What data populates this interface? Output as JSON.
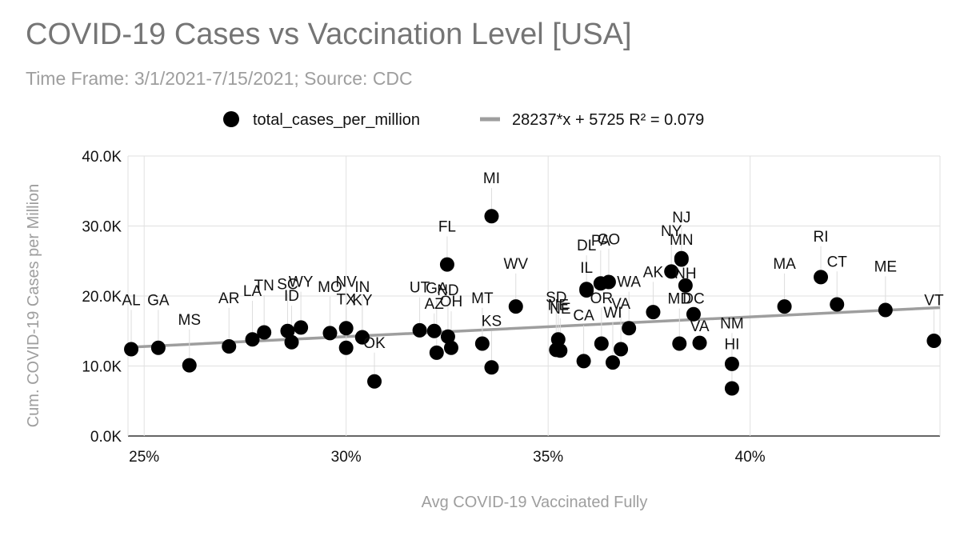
{
  "chart_data": {
    "type": "scatter",
    "title": "COVID-19 Cases vs Vaccination Level [USA]",
    "subtitle": "Time Frame: 3/1/2021-7/15/2021; Source: CDC",
    "xlabel": "Avg COVID-19 Vaccinated Fully",
    "ylabel": "Cum. COVID-19 Cases per Million",
    "xlim": [
      0.246,
      0.447
    ],
    "ylim": [
      0,
      40000
    ],
    "x_ticks": [
      {
        "value": 0.25,
        "label": "25%"
      },
      {
        "value": 0.3,
        "label": "30%"
      },
      {
        "value": 0.35,
        "label": "35%"
      },
      {
        "value": 0.4,
        "label": "40%"
      }
    ],
    "y_ticks": [
      {
        "value": 0,
        "label": "0.0K"
      },
      {
        "value": 10000,
        "label": "10.0K"
      },
      {
        "value": 20000,
        "label": "20.0K"
      },
      {
        "value": 30000,
        "label": "30.0K"
      },
      {
        "value": 40000,
        "label": "40.0K"
      }
    ],
    "grid": true,
    "legend": {
      "position": "top",
      "series_label": "total_cases_per_million",
      "trendline_label": "28237*x + 5725 R² = 0.079"
    },
    "trendline": {
      "slope": 28237,
      "intercept": 5725,
      "r2": 0.079
    },
    "colors": {
      "points": "#000000",
      "trendline": "#9e9e9e",
      "grid": "#e0e0e0",
      "axis": "#333333"
    },
    "series": [
      {
        "name": "total_cases_per_million",
        "points": [
          {
            "label": "AL",
            "x": 0.2468,
            "y": 12400,
            "ly": 18700
          },
          {
            "label": "GA",
            "x": 0.2535,
            "y": 12600,
            "ly": 18700
          },
          {
            "label": "MS",
            "x": 0.2612,
            "y": 10100,
            "ly": 15900
          },
          {
            "label": "AR",
            "x": 0.271,
            "y": 12800,
            "ly": 19000
          },
          {
            "label": "LA",
            "x": 0.2768,
            "y": 13800,
            "ly": 20000
          },
          {
            "label": "TN",
            "x": 0.2797,
            "y": 14800,
            "ly": 20800
          },
          {
            "label": "SC",
            "x": 0.2855,
            "y": 15000,
            "ly": 21000
          },
          {
            "label": "ID",
            "x": 0.2865,
            "y": 13400,
            "ly": 19300
          },
          {
            "label": "WY",
            "x": 0.2888,
            "y": 15500,
            "ly": 21300
          },
          {
            "label": "MO",
            "x": 0.296,
            "y": 14700,
            "ly": 20600
          },
          {
            "label": "TX",
            "x": 0.3,
            "y": 12600,
            "ly": 18800
          },
          {
            "label": "NV",
            "x": 0.3,
            "y": 15400,
            "ly": 21300
          },
          {
            "label": "IN",
            "x": 0.304,
            "y": 14100,
            "ly": 20600
          },
          {
            "label": "OK",
            "x": 0.307,
            "y": 7800,
            "ly": 12600
          },
          {
            "label": "KY",
            "x": 0.304,
            "y": 14100,
            "ly": 18700
          },
          {
            "label": "UT",
            "x": 0.3182,
            "y": 15100,
            "ly": 20500
          },
          {
            "label": "AZ",
            "x": 0.3218,
            "y": 15000,
            "ly": 18200
          },
          {
            "label": "GA",
            "x": 0.3224,
            "y": 11900,
            "ly": 20400
          },
          {
            "label": "ND",
            "x": 0.3252,
            "y": 14200,
            "ly": 20100
          },
          {
            "label": "OH",
            "x": 0.326,
            "y": 12600,
            "ly": 18500
          },
          {
            "label": "FL",
            "x": 0.325,
            "y": 24500,
            "ly": 29200
          },
          {
            "label": "MI",
            "x": 0.336,
            "y": 31400,
            "ly": 36100
          },
          {
            "label": "MT",
            "x": 0.3337,
            "y": 13200,
            "ly": 19000
          },
          {
            "label": "KS",
            "x": 0.336,
            "y": 9800,
            "ly": 15700
          },
          {
            "label": "WV",
            "x": 0.342,
            "y": 18500,
            "ly": 23900
          },
          {
            "label": "SD",
            "x": 0.352,
            "y": 12300,
            "ly": 19100
          },
          {
            "label": "NE",
            "x": 0.3525,
            "y": 13800,
            "ly": 18000
          },
          {
            "label": "NE",
            "x": 0.353,
            "y": 12200,
            "ly": 17500
          },
          {
            "label": "CA",
            "x": 0.3588,
            "y": 10700,
            "ly": 16500
          },
          {
            "label": "IL",
            "x": 0.3595,
            "y": 20800,
            "ly": 23300
          },
          {
            "label": "DL",
            "x": 0.3595,
            "y": 21000,
            "ly": 26500
          },
          {
            "label": "PA",
            "x": 0.363,
            "y": 21800,
            "ly": 27200
          },
          {
            "label": "CO",
            "x": 0.365,
            "y": 22000,
            "ly": 27400
          },
          {
            "label": "OR",
            "x": 0.3632,
            "y": 13200,
            "ly": 19000
          },
          {
            "label": "WI",
            "x": 0.366,
            "y": 10500,
            "ly": 16900
          },
          {
            "label": "VA",
            "x": 0.368,
            "y": 12400,
            "ly": 18200
          },
          {
            "label": "WA",
            "x": 0.37,
            "y": 15400,
            "ly": 21300
          },
          {
            "label": "AK",
            "x": 0.376,
            "y": 17700,
            "ly": 22700
          },
          {
            "label": "MD",
            "x": 0.3825,
            "y": 13200,
            "ly": 18900
          },
          {
            "label": "NY",
            "x": 0.3805,
            "y": 23500,
            "ly": 28600
          },
          {
            "label": "MN",
            "x": 0.383,
            "y": 25200,
            "ly": 27300
          },
          {
            "label": "NJ",
            "x": 0.383,
            "y": 25400,
            "ly": 30500
          },
          {
            "label": "NH",
            "x": 0.384,
            "y": 21500,
            "ly": 22500
          },
          {
            "label": "DC",
            "x": 0.386,
            "y": 17400,
            "ly": 18900
          },
          {
            "label": "VA",
            "x": 0.3875,
            "y": 13300,
            "ly": 15000
          },
          {
            "label": "NM",
            "x": 0.3955,
            "y": 10300,
            "ly": 15400
          },
          {
            "label": "HI",
            "x": 0.3955,
            "y": 6800,
            "ly": 12400
          },
          {
            "label": "MA",
            "x": 0.4085,
            "y": 18500,
            "ly": 23900
          },
          {
            "label": "RI",
            "x": 0.4175,
            "y": 22700,
            "ly": 27800
          },
          {
            "label": "CT",
            "x": 0.4215,
            "y": 18800,
            "ly": 24200
          },
          {
            "label": "ME",
            "x": 0.4335,
            "y": 18000,
            "ly": 23500
          },
          {
            "label": "VT",
            "x": 0.4455,
            "y": 13600,
            "ly": 18700
          }
        ]
      }
    ]
  }
}
